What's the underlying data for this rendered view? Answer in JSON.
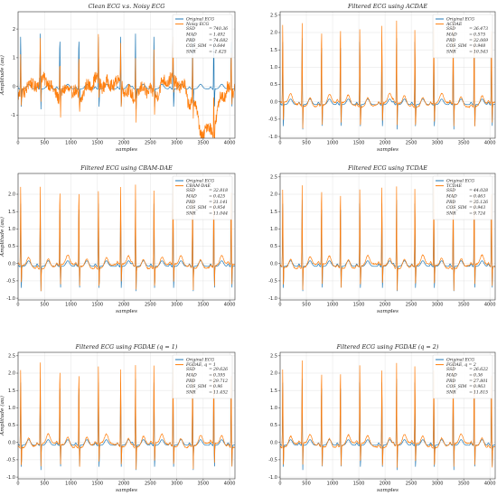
{
  "figure": {
    "colors": {
      "original": "#1f77b4",
      "filtered": "#ff7f0e"
    },
    "xlabel": "samples",
    "ylabel": "Amplitude (au)"
  },
  "chart_data": [
    {
      "type": "line",
      "title": "Clean ECG v.s. Noisy ECG",
      "xlabel": "samples",
      "ylabel": "Amplitude (au)",
      "xlim": [
        0,
        4100
      ],
      "ylim": [
        -1.8,
        2.6
      ],
      "xticks": [
        0,
        500,
        1000,
        1500,
        2000,
        2500,
        3000,
        3500,
        4000
      ],
      "yticks": [
        -1,
        0,
        1,
        2
      ],
      "grid": true,
      "legend": "top-right",
      "series": [
        {
          "name": "Original ECG",
          "kind": "original",
          "color": "#1f77b4"
        },
        {
          "name": "Noisy ECG",
          "kind": "noisy",
          "color": "#ff7f0e"
        }
      ],
      "metrics": [
        {
          "label": "SSD",
          "value": "740.36"
        },
        {
          "label": "MAD",
          "value": "1.492"
        },
        {
          "label": "PRD",
          "value": "74.682"
        },
        {
          "label": "COS_SIM",
          "value": "0.644"
        },
        {
          "label": "SNR",
          "value": "-1.425"
        }
      ]
    },
    {
      "type": "line",
      "title": "Filtered ECG using ACDAE",
      "xlabel": "samples",
      "ylabel": "",
      "xlim": [
        0,
        4100
      ],
      "ylim": [
        -1.05,
        2.6
      ],
      "xticks": [
        0,
        500,
        1000,
        1500,
        2000,
        2500,
        3000,
        3500,
        4000
      ],
      "yticks": [
        -1.0,
        -0.5,
        0.0,
        0.5,
        1.0,
        1.5,
        2.0,
        2.5
      ],
      "grid": true,
      "legend": "top-right",
      "series": [
        {
          "name": "Original ECG",
          "kind": "original",
          "color": "#1f77b4"
        },
        {
          "name": "ACDAE",
          "kind": "filtered",
          "color": "#ff7f0e"
        }
      ],
      "metrics": [
        {
          "label": "SSD",
          "value": "36.473"
        },
        {
          "label": "MAD",
          "value": "0.575"
        },
        {
          "label": "PRD",
          "value": "32.069"
        },
        {
          "label": "COS_SIM",
          "value": "0.948"
        },
        {
          "label": "SNR",
          "value": "10.543"
        }
      ]
    },
    {
      "type": "line",
      "title": "Filtered ECG using CBAM-DAE",
      "xlabel": "samples",
      "ylabel": "Amplitude (au)",
      "xlim": [
        0,
        4100
      ],
      "ylim": [
        -1.05,
        2.6
      ],
      "xticks": [
        0,
        500,
        1000,
        1500,
        2000,
        2500,
        3000,
        3500,
        4000
      ],
      "yticks": [
        -1.0,
        -0.5,
        0.0,
        0.5,
        1.0,
        1.5,
        2.0
      ],
      "grid": true,
      "legend": "top-right",
      "series": [
        {
          "name": "Original ECG",
          "kind": "original",
          "color": "#1f77b4"
        },
        {
          "name": "CBAM-DAE",
          "kind": "filtered",
          "color": "#ff7f0e"
        }
      ],
      "metrics": [
        {
          "label": "SSD",
          "value": "32.818"
        },
        {
          "label": "MAD",
          "value": "0.425"
        },
        {
          "label": "PRD",
          "value": "31.141"
        },
        {
          "label": "COS_SIM",
          "value": "0.954"
        },
        {
          "label": "SNR",
          "value": "11.044"
        }
      ]
    },
    {
      "type": "line",
      "title": "Filtered ECG using TCDAE",
      "xlabel": "samples",
      "ylabel": "",
      "xlim": [
        0,
        4100
      ],
      "ylim": [
        -1.05,
        2.6
      ],
      "xticks": [
        0,
        500,
        1000,
        1500,
        2000,
        2500,
        3000,
        3500,
        4000
      ],
      "yticks": [
        -1.0,
        -0.5,
        0.0,
        0.5,
        1.0,
        1.5,
        2.0,
        2.5
      ],
      "grid": true,
      "legend": "top-right",
      "series": [
        {
          "name": "Original ECG",
          "kind": "original",
          "color": "#1f77b4"
        },
        {
          "name": "TCDAE",
          "kind": "filtered",
          "color": "#ff7f0e"
        }
      ],
      "metrics": [
        {
          "label": "SSD",
          "value": "44.028"
        },
        {
          "label": "MAD",
          "value": "0.463"
        },
        {
          "label": "PRD",
          "value": "35.126"
        },
        {
          "label": "COS_SIM",
          "value": "0.943"
        },
        {
          "label": "SNR",
          "value": "9.724"
        }
      ]
    },
    {
      "type": "line",
      "title": "Filtered ECG using FGDAE (q = 1)",
      "xlabel": "samples",
      "ylabel": "Amplitude (au)",
      "xlim": [
        0,
        4100
      ],
      "ylim": [
        -1.05,
        2.6
      ],
      "xticks": [
        0,
        500,
        1000,
        1500,
        2000,
        2500,
        3000,
        3500,
        4000
      ],
      "yticks": [
        -1.0,
        -0.5,
        0.0,
        0.5,
        1.0,
        1.5,
        2.0,
        2.5
      ],
      "grid": true,
      "legend": "top-right",
      "series": [
        {
          "name": "Original ECG",
          "kind": "original",
          "color": "#1f77b4"
        },
        {
          "name": "FGDAE, q = 1",
          "kind": "filtered",
          "color": "#ff7f0e"
        }
      ],
      "metrics": [
        {
          "label": "SSD",
          "value": "29.626"
        },
        {
          "label": "MAD",
          "value": "0.395"
        },
        {
          "label": "PRD",
          "value": "29.712"
        },
        {
          "label": "COS_SIM",
          "value": "0.96"
        },
        {
          "label": "SNR",
          "value": "11.452"
        }
      ]
    },
    {
      "type": "line",
      "title": "Filtered ECG using FGDAE (q = 2)",
      "xlabel": "samples",
      "ylabel": "",
      "xlim": [
        0,
        4100
      ],
      "ylim": [
        -1.05,
        2.6
      ],
      "xticks": [
        0,
        500,
        1000,
        1500,
        2000,
        2500,
        3000,
        3500,
        4000
      ],
      "yticks": [
        -1.0,
        -0.5,
        0.0,
        0.5,
        1.0,
        1.5,
        2.0,
        2.5
      ],
      "grid": true,
      "legend": "top-right",
      "series": [
        {
          "name": "Original ECG",
          "kind": "original",
          "color": "#1f77b4"
        },
        {
          "name": "FGDAE, q = 2",
          "kind": "filtered",
          "color": "#ff7f0e"
        }
      ],
      "metrics": [
        {
          "label": "SSD",
          "value": "26.622"
        },
        {
          "label": "MAD",
          "value": "0.36"
        },
        {
          "label": "PRD",
          "value": "27.801"
        },
        {
          "label": "COS_SIM",
          "value": "0.963"
        },
        {
          "label": "SNR",
          "value": "11.815"
        }
      ]
    }
  ]
}
